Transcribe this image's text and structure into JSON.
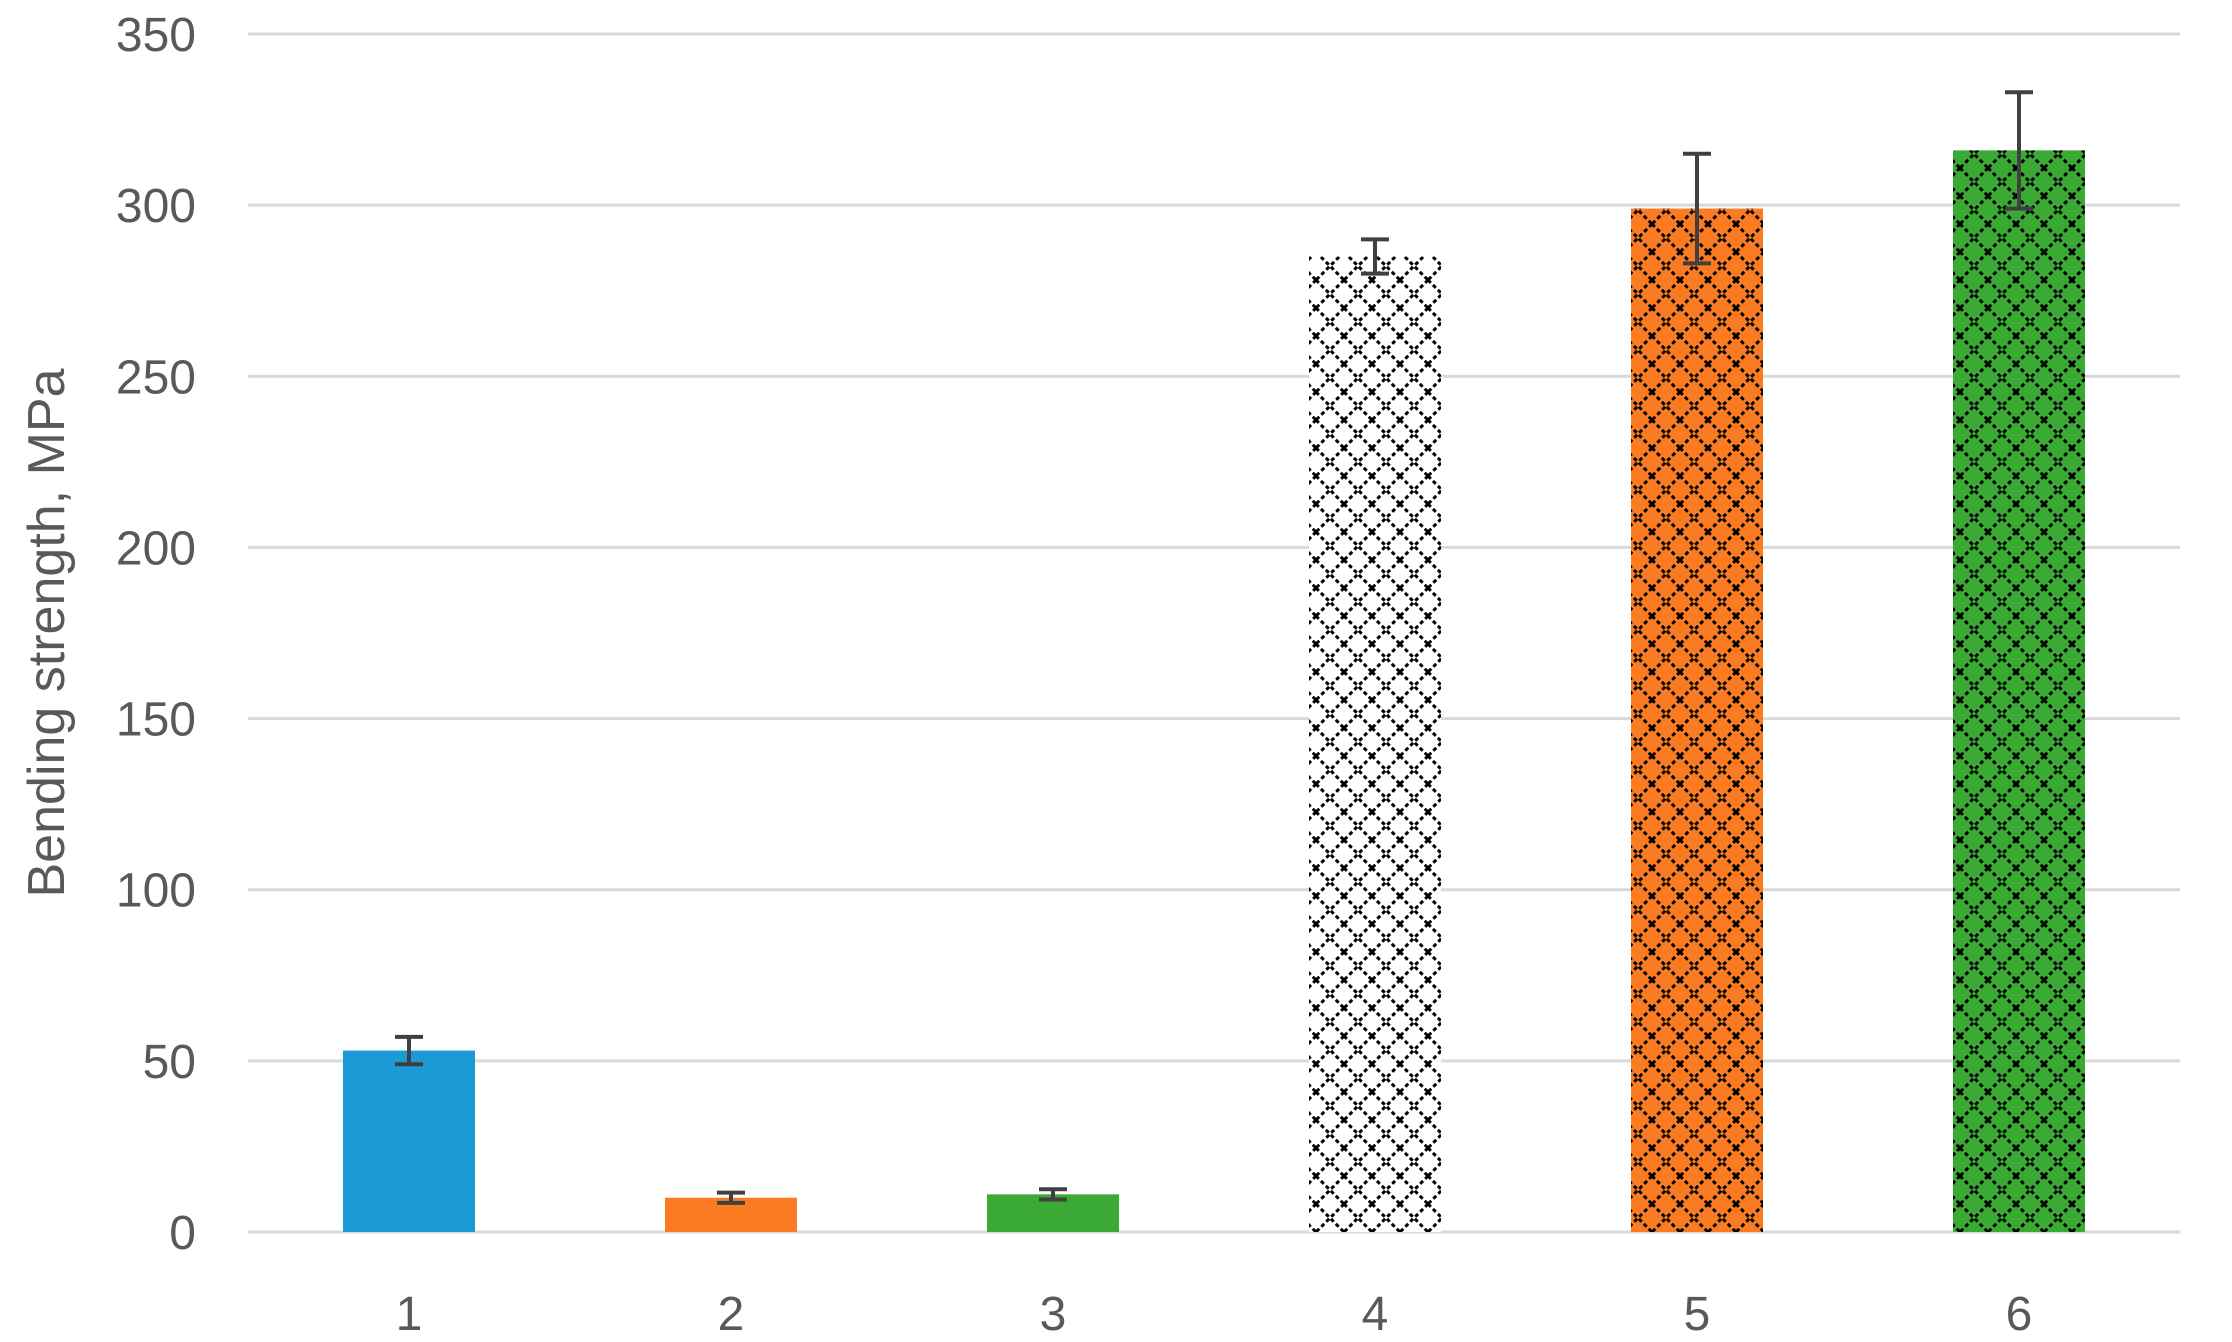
{
  "chart_data": {
    "type": "bar",
    "title": "",
    "xlabel": "",
    "ylabel": "Bending strength, MPa",
    "ylim": [
      0,
      350
    ],
    "yticks": [
      0,
      50,
      100,
      150,
      200,
      250,
      300,
      350
    ],
    "grid": true,
    "legend": "none",
    "categories": [
      "1",
      "2",
      "3",
      "4",
      "5",
      "6"
    ],
    "values": [
      53,
      10,
      11,
      285,
      299,
      316
    ],
    "error": [
      4,
      1.5,
      1.5,
      5,
      16,
      17
    ],
    "colors": [
      "#1b9ad6",
      "#fb7b22",
      "#3aaa35",
      "#ffffff",
      "#fb7b22",
      "#3aaa35"
    ],
    "patterns": [
      "solid",
      "solid",
      "solid",
      "crosshatch",
      "crosshatch",
      "crosshatch"
    ]
  }
}
